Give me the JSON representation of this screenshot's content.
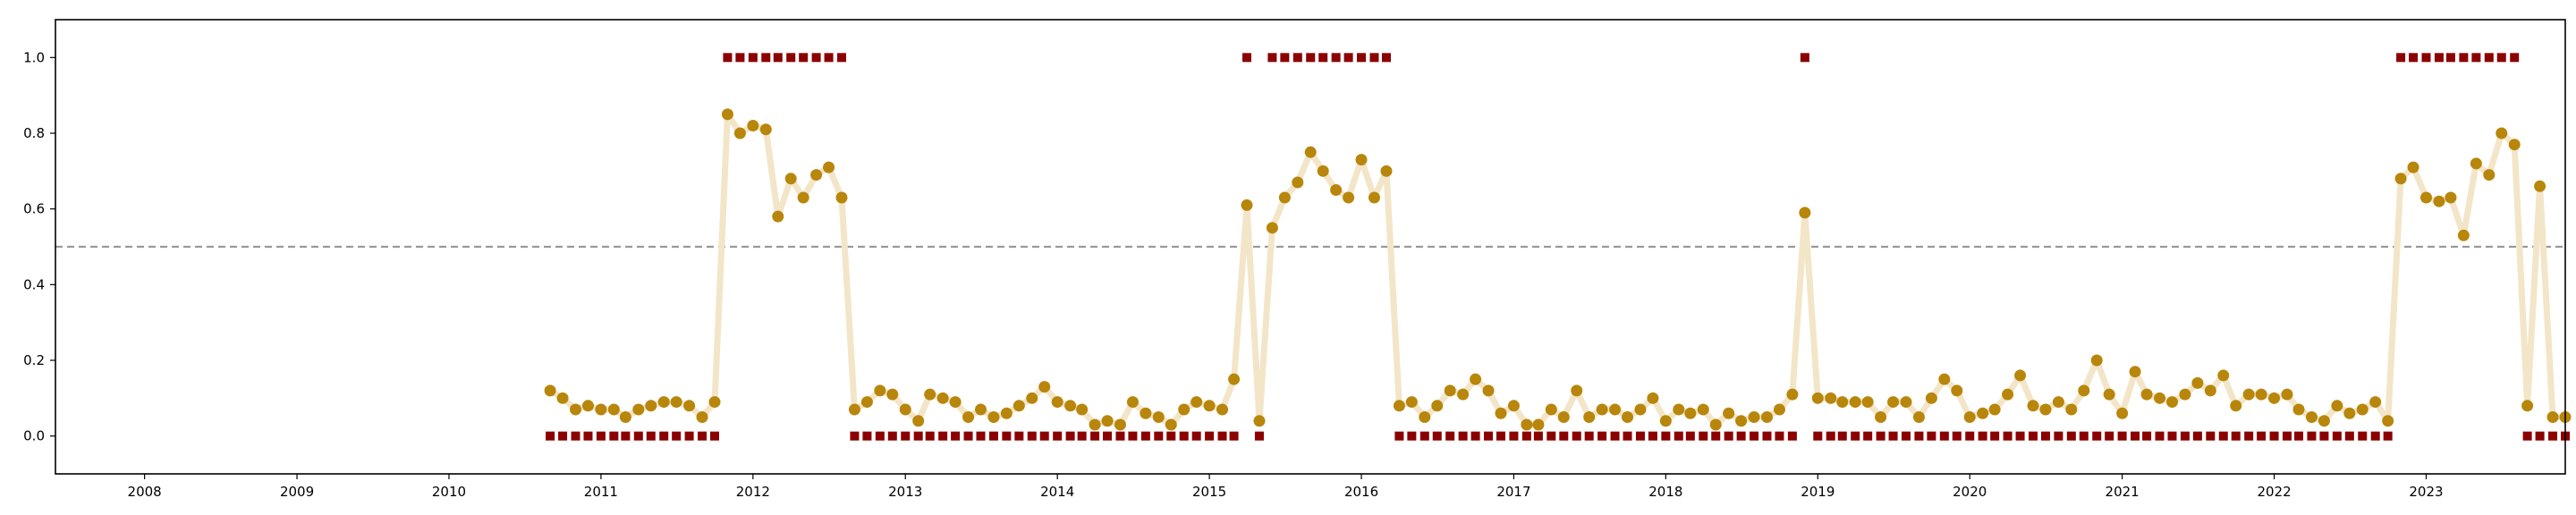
{
  "chart_data": {
    "type": "scatter",
    "x_axis": {
      "type": "date",
      "range": [
        "2007-06-01",
        "2023-12-01"
      ],
      "ticks": [
        "2008",
        "2009",
        "2010",
        "2011",
        "2012",
        "2013",
        "2014",
        "2015",
        "2016",
        "2017",
        "2018",
        "2019",
        "2020",
        "2021",
        "2022",
        "2023"
      ]
    },
    "y_axis": {
      "range": [
        -0.1,
        1.1
      ],
      "ticks": [
        "0.0",
        "0.2",
        "0.4",
        "0.6",
        "0.8",
        "1.0"
      ]
    },
    "threshold": {
      "value": 0.5,
      "style": "dashed",
      "color": "#999999"
    },
    "colors": {
      "score": "#b8860b",
      "line": "#f3e5c8",
      "label": "#8b0000"
    },
    "series": [
      {
        "type": "line+markers",
        "x": [
          "2010-09-01",
          "2010-10-01",
          "2010-11-01",
          "2010-12-01",
          "2011-01-01",
          "2011-02-01",
          "2011-03-01",
          "2011-04-01",
          "2011-05-01",
          "2011-06-01",
          "2011-07-01",
          "2011-08-01",
          "2011-09-01",
          "2011-10-01",
          "2011-11-01",
          "2011-12-01",
          "2012-01-01",
          "2012-02-01",
          "2012-03-01",
          "2012-04-01",
          "2012-05-01",
          "2012-06-01",
          "2012-07-01",
          "2012-08-01",
          "2012-09-01",
          "2012-10-01",
          "2012-11-01",
          "2012-12-01",
          "2013-01-01",
          "2013-02-01",
          "2013-03-01",
          "2013-04-01",
          "2013-05-01",
          "2013-06-01",
          "2013-07-01",
          "2013-08-01",
          "2013-09-01",
          "2013-10-01",
          "2013-11-01",
          "2013-12-01",
          "2014-01-01",
          "2014-02-01",
          "2014-03-01",
          "2014-04-01",
          "2014-05-01",
          "2014-06-01",
          "2014-07-01",
          "2014-08-01",
          "2014-09-01",
          "2014-10-01",
          "2014-11-01",
          "2014-12-01",
          "2015-01-01",
          "2015-02-01",
          "2015-03-01",
          "2015-04-01",
          "2015-05-01",
          "2015-06-01",
          "2015-07-01",
          "2015-08-01",
          "2015-09-01",
          "2015-10-01",
          "2015-11-01",
          "2015-12-01",
          "2016-01-01",
          "2016-02-01",
          "2016-03-01",
          "2016-04-01",
          "2016-05-01",
          "2016-06-01",
          "2016-07-01",
          "2016-08-01",
          "2016-09-01",
          "2016-10-01",
          "2016-11-01",
          "2016-12-01",
          "2017-01-01",
          "2017-02-01",
          "2017-03-01",
          "2017-04-01",
          "2017-05-01",
          "2017-06-01",
          "2017-07-01",
          "2017-08-01",
          "2017-09-01",
          "2017-10-01",
          "2017-11-01",
          "2017-12-01",
          "2018-01-01",
          "2018-02-01",
          "2018-03-01",
          "2018-04-01",
          "2018-05-01",
          "2018-06-01",
          "2018-07-01",
          "2018-08-01",
          "2018-09-01",
          "2018-10-01",
          "2018-11-01",
          "2018-12-01",
          "2019-01-01",
          "2019-02-01",
          "2019-03-01",
          "2019-04-01",
          "2019-05-01",
          "2019-06-01",
          "2019-07-01",
          "2019-08-01",
          "2019-09-01",
          "2019-10-01",
          "2019-11-01",
          "2019-12-01",
          "2020-01-01",
          "2020-02-01",
          "2020-03-01",
          "2020-04-01",
          "2020-05-01",
          "2020-06-01",
          "2020-07-01",
          "2020-08-01",
          "2020-09-01",
          "2020-10-01",
          "2020-11-01",
          "2020-12-01",
          "2021-01-01",
          "2021-02-01",
          "2021-03-01",
          "2021-04-01",
          "2021-05-01",
          "2021-06-01",
          "2021-07-01",
          "2021-08-01",
          "2021-09-01",
          "2021-10-01",
          "2021-11-01",
          "2021-12-01",
          "2022-01-01",
          "2022-02-01",
          "2022-03-01",
          "2022-04-01",
          "2022-05-01",
          "2022-06-01",
          "2022-07-01",
          "2022-08-01",
          "2022-09-01",
          "2022-10-01",
          "2022-11-01",
          "2022-12-01",
          "2023-01-01",
          "2023-02-01",
          "2023-03-01",
          "2023-04-01",
          "2023-05-01",
          "2023-06-01",
          "2023-07-01",
          "2023-08-01",
          "2023-09-01",
          "2023-10-01",
          "2023-11-01",
          "2023-12-01"
        ],
        "y": [
          0.12,
          0.1,
          0.07,
          0.08,
          0.07,
          0.07,
          0.05,
          0.07,
          0.08,
          0.09,
          0.09,
          0.08,
          0.05,
          0.09,
          0.85,
          0.8,
          0.82,
          0.81,
          0.58,
          0.68,
          0.63,
          0.69,
          0.71,
          0.63,
          0.07,
          0.09,
          0.12,
          0.11,
          0.07,
          0.04,
          0.11,
          0.1,
          0.09,
          0.05,
          0.07,
          0.05,
          0.06,
          0.08,
          0.1,
          0.13,
          0.09,
          0.08,
          0.07,
          0.03,
          0.04,
          0.03,
          0.09,
          0.06,
          0.05,
          0.03,
          0.07,
          0.09,
          0.08,
          0.07,
          0.15,
          0.61,
          0.04,
          0.55,
          0.63,
          0.67,
          0.75,
          0.7,
          0.65,
          0.63,
          0.73,
          0.63,
          0.7,
          0.08,
          0.09,
          0.05,
          0.08,
          0.12,
          0.11,
          0.15,
          0.12,
          0.06,
          0.08,
          0.03,
          0.03,
          0.07,
          0.05,
          0.12,
          0.05,
          0.07,
          0.07,
          0.05,
          0.07,
          0.1,
          0.04,
          0.07,
          0.06,
          0.07,
          0.03,
          0.06,
          0.04,
          0.05,
          0.05,
          0.07,
          0.11,
          0.59,
          0.1,
          0.1,
          0.09,
          0.09,
          0.09,
          0.05,
          0.09,
          0.09,
          0.05,
          0.1,
          0.15,
          0.12,
          0.05,
          0.06,
          0.07,
          0.11,
          0.16,
          0.08,
          0.07,
          0.09,
          0.07,
          0.12,
          0.2,
          0.11,
          0.06,
          0.17,
          0.11,
          0.1,
          0.09,
          0.11,
          0.14,
          0.12,
          0.16,
          0.08,
          0.11,
          0.11,
          0.1,
          0.11,
          0.07,
          0.05,
          0.04,
          0.08,
          0.06,
          0.07,
          0.09,
          0.04,
          0.68,
          0.71,
          0.63,
          0.62,
          0.63,
          0.53,
          0.72,
          0.69,
          0.8,
          0.77,
          0.08,
          0.66,
          0.05,
          0.05
        ]
      },
      {
        "type": "square-markers",
        "x": [
          "2010-09-01",
          "2010-10-01",
          "2010-11-01",
          "2010-12-01",
          "2011-01-01",
          "2011-02-01",
          "2011-03-01",
          "2011-04-01",
          "2011-05-01",
          "2011-06-01",
          "2011-07-01",
          "2011-08-01",
          "2011-09-01",
          "2011-10-01",
          "2011-11-01",
          "2011-12-01",
          "2012-01-01",
          "2012-02-01",
          "2012-03-01",
          "2012-04-01",
          "2012-05-01",
          "2012-06-01",
          "2012-07-01",
          "2012-08-01",
          "2012-09-01",
          "2012-10-01",
          "2012-11-01",
          "2012-12-01",
          "2013-01-01",
          "2013-02-01",
          "2013-03-01",
          "2013-04-01",
          "2013-05-01",
          "2013-06-01",
          "2013-07-01",
          "2013-08-01",
          "2013-09-01",
          "2013-10-01",
          "2013-11-01",
          "2013-12-01",
          "2014-01-01",
          "2014-02-01",
          "2014-03-01",
          "2014-04-01",
          "2014-05-01",
          "2014-06-01",
          "2014-07-01",
          "2014-08-01",
          "2014-09-01",
          "2014-10-01",
          "2014-11-01",
          "2014-12-01",
          "2015-01-01",
          "2015-02-01",
          "2015-03-01",
          "2015-04-01",
          "2015-05-01",
          "2015-06-01",
          "2015-07-01",
          "2015-08-01",
          "2015-09-01",
          "2015-10-01",
          "2015-11-01",
          "2015-12-01",
          "2016-01-01",
          "2016-02-01",
          "2016-03-01",
          "2016-04-01",
          "2016-05-01",
          "2016-06-01",
          "2016-07-01",
          "2016-08-01",
          "2016-09-01",
          "2016-10-01",
          "2016-11-01",
          "2016-12-01",
          "2017-01-01",
          "2017-02-01",
          "2017-03-01",
          "2017-04-01",
          "2017-05-01",
          "2017-06-01",
          "2017-07-01",
          "2017-08-01",
          "2017-09-01",
          "2017-10-01",
          "2017-11-01",
          "2017-12-01",
          "2018-01-01",
          "2018-02-01",
          "2018-03-01",
          "2018-04-01",
          "2018-05-01",
          "2018-06-01",
          "2018-07-01",
          "2018-08-01",
          "2018-09-01",
          "2018-10-01",
          "2018-11-01",
          "2018-12-01",
          "2019-01-01",
          "2019-02-01",
          "2019-03-01",
          "2019-04-01",
          "2019-05-01",
          "2019-06-01",
          "2019-07-01",
          "2019-08-01",
          "2019-09-01",
          "2019-10-01",
          "2019-11-01",
          "2019-12-01",
          "2020-01-01",
          "2020-02-01",
          "2020-03-01",
          "2020-04-01",
          "2020-05-01",
          "2020-06-01",
          "2020-07-01",
          "2020-08-01",
          "2020-09-01",
          "2020-10-01",
          "2020-11-01",
          "2020-12-01",
          "2021-01-01",
          "2021-02-01",
          "2021-03-01",
          "2021-04-01",
          "2021-05-01",
          "2021-06-01",
          "2021-07-01",
          "2021-08-01",
          "2021-09-01",
          "2021-10-01",
          "2021-11-01",
          "2021-12-01",
          "2022-01-01",
          "2022-02-01",
          "2022-03-01",
          "2022-04-01",
          "2022-05-01",
          "2022-06-01",
          "2022-07-01",
          "2022-08-01",
          "2022-09-01",
          "2022-10-01",
          "2022-11-01",
          "2022-12-01",
          "2023-01-01",
          "2023-02-01",
          "2023-03-01",
          "2023-04-01",
          "2023-05-01",
          "2023-06-01",
          "2023-07-01",
          "2023-08-01",
          "2023-09-01",
          "2023-10-01",
          "2023-11-01",
          "2023-12-01"
        ],
        "y": [
          0,
          0,
          0,
          0,
          0,
          0,
          0,
          0,
          0,
          0,
          0,
          0,
          0,
          0,
          1,
          1,
          1,
          1,
          1,
          1,
          1,
          1,
          1,
          1,
          0,
          0,
          0,
          0,
          0,
          0,
          0,
          0,
          0,
          0,
          0,
          0,
          0,
          0,
          0,
          0,
          0,
          0,
          0,
          0,
          0,
          0,
          0,
          0,
          0,
          0,
          0,
          0,
          0,
          0,
          0,
          1,
          0,
          1,
          1,
          1,
          1,
          1,
          1,
          1,
          1,
          1,
          1,
          0,
          0,
          0,
          0,
          0,
          0,
          0,
          0,
          0,
          0,
          0,
          0,
          0,
          0,
          0,
          0,
          0,
          0,
          0,
          0,
          0,
          0,
          0,
          0,
          0,
          0,
          0,
          0,
          0,
          0,
          0,
          0,
          1,
          0,
          0,
          0,
          0,
          0,
          0,
          0,
          0,
          0,
          0,
          0,
          0,
          0,
          0,
          0,
          0,
          0,
          0,
          0,
          0,
          0,
          0,
          0,
          0,
          0,
          0,
          0,
          0,
          0,
          0,
          0,
          0,
          0,
          0,
          0,
          0,
          0,
          0,
          0,
          0,
          0,
          0,
          0,
          0,
          0,
          0,
          1,
          1,
          1,
          1,
          1,
          1,
          1,
          1,
          1,
          1,
          0,
          0,
          0,
          0
        ]
      }
    ]
  }
}
